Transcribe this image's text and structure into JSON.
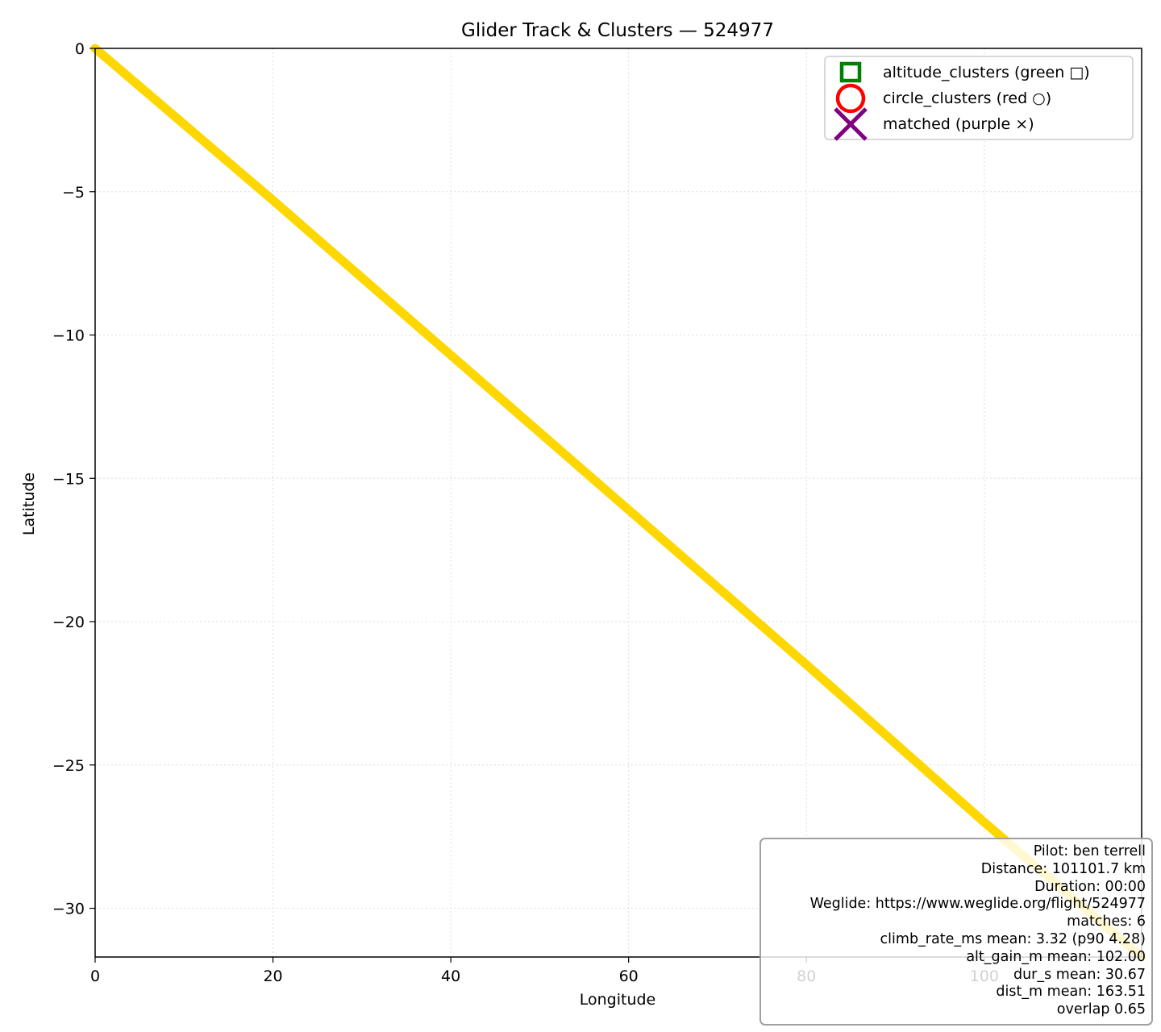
{
  "chart_data": {
    "type": "line",
    "title": "Glider Track & Clusters — 524977",
    "xlabel": "Longitude",
    "ylabel": "Latitude",
    "xlim": [
      0,
      117.7
    ],
    "ylim": [
      -31.7,
      0
    ],
    "xticks": [
      0,
      20,
      40,
      60,
      80,
      100
    ],
    "yticks": [
      0,
      -5,
      -10,
      -15,
      -20,
      -25,
      -30
    ],
    "grid": true,
    "legend_position": "top-right",
    "series": [
      {
        "color": "#ffd700",
        "x": [
          0,
          20,
          40,
          60,
          80,
          100,
          117.7
        ],
        "y": [
          0,
          -5.3,
          -10.7,
          -16.1,
          -21.5,
          -27.0,
          -31.7
        ]
      }
    ],
    "legend": [
      {
        "label": "altitude_clusters (green □)",
        "marker": "square",
        "color": "#008000"
      },
      {
        "label": "circle_clusters (red ○)",
        "marker": "circle",
        "color": "#ff0000"
      },
      {
        "label": "matched (purple ×)",
        "marker": "x",
        "color": "#800080"
      }
    ],
    "annotation_lines": [
      "Pilot: ben terrell",
      "Distance: 101101.7 km",
      "Duration: 00:00",
      "Weglide: https://www.weglide.org/flight/524977",
      "matches: 6",
      "climb_rate_ms mean: 3.32 (p90 4.28)",
      "alt_gain_m mean: 102.00",
      "dur_s mean: 30.67",
      "dist_m mean: 163.51",
      "overlap 0.65"
    ]
  }
}
